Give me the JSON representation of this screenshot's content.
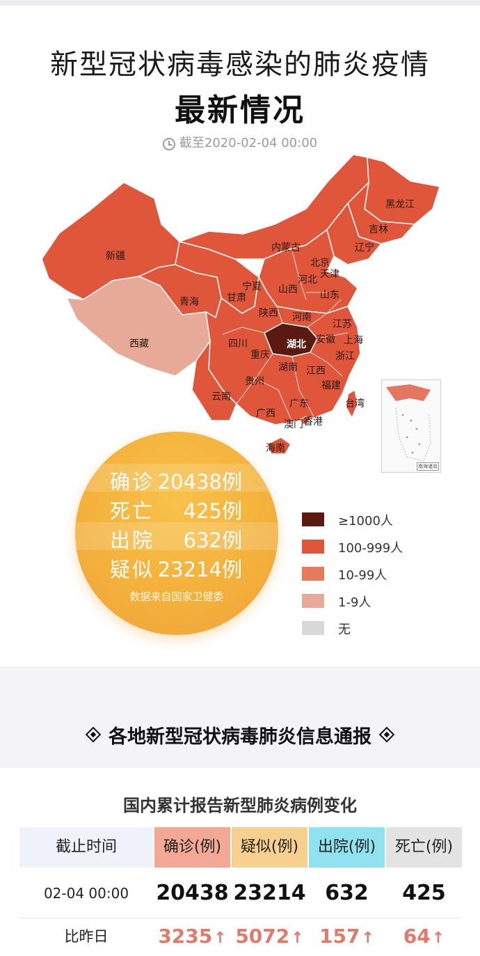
{
  "header": {
    "title_line1": "新型冠状病毒感染的肺炎疫情",
    "title_line2": "最新情况",
    "timestamp": "截至2020-02-04 00:00"
  },
  "map": {
    "provinces": {
      "xinjiang": "新疆",
      "xizang": "西藏",
      "qinghai": "青海",
      "gansu": "甘肃",
      "neimenggu": "内蒙古",
      "heilongjiang": "黑龙江",
      "jilin": "吉林",
      "liaoning": "辽宁",
      "beijing": "北京",
      "tianjin": "天津",
      "hebei": "河北",
      "shanxi": "山西",
      "shandong": "山东",
      "ningxia": "宁夏",
      "shaanxi": "陕西",
      "henan": "河南",
      "jiangsu": "江苏",
      "anhui": "安徽",
      "shanghai": "上海",
      "hubei": "湖北",
      "sichuan": "四川",
      "chongqing": "重庆",
      "zhejiang": "浙江",
      "hunan": "湖南",
      "jiangxi": "江西",
      "guizhou": "贵州",
      "fujian": "福建",
      "yunnan": "云南",
      "guangxi": "广西",
      "guangdong": "广东",
      "taiwan": "台湾",
      "aomen": "澳门",
      "xianggang": "香港",
      "hainan": "海南"
    },
    "inset_caption": "南海诸岛",
    "colors": {
      "level1000": "#5a1a12",
      "level100": "#e0563a",
      "level10": "#e87a5c",
      "level1": "#e8aa98",
      "none": "#d8d8d8"
    }
  },
  "stats": {
    "confirmed_label": "确诊",
    "confirmed_value": "20438例",
    "deaths_label": "死亡",
    "deaths_value": "425例",
    "discharged_label": "出院",
    "discharged_value": "632例",
    "suspected_label": "疑似",
    "suspected_value": "23214例",
    "source": "数据来自国家卫健委"
  },
  "legend": [
    {
      "label": "≥1000人",
      "color": "#5a1a12"
    },
    {
      "label": "100-999人",
      "color": "#e0563a"
    },
    {
      "label": "10-99人",
      "color": "#e87a5c"
    },
    {
      "label": "1-9人",
      "color": "#e8aa98"
    },
    {
      "label": "无",
      "color": "#d8d8d8"
    }
  ],
  "section": {
    "title": "各地新型冠状病毒肺炎信息通报"
  },
  "table": {
    "title": "国内累计报告新型肺炎病例变化",
    "headers": {
      "time": "截止时间",
      "confirmed": "确诊(例)",
      "suspected": "疑似(例)",
      "discharged": "出院(例)",
      "deaths": "死亡(例)"
    },
    "header_colors": {
      "time": "#f0f2fa",
      "confirmed": "#f3a895",
      "suspected": "#f6d08e",
      "discharged": "#8fe2ee",
      "deaths": "#e3e3e3"
    },
    "row_today": {
      "time": "02-04 00:00",
      "confirmed": "20438",
      "suspected": "23214",
      "discharged": "632",
      "deaths": "425"
    },
    "row_change": {
      "label": "比昨日",
      "confirmed": "3235",
      "suspected": "5072",
      "discharged": "157",
      "deaths": "64"
    }
  }
}
